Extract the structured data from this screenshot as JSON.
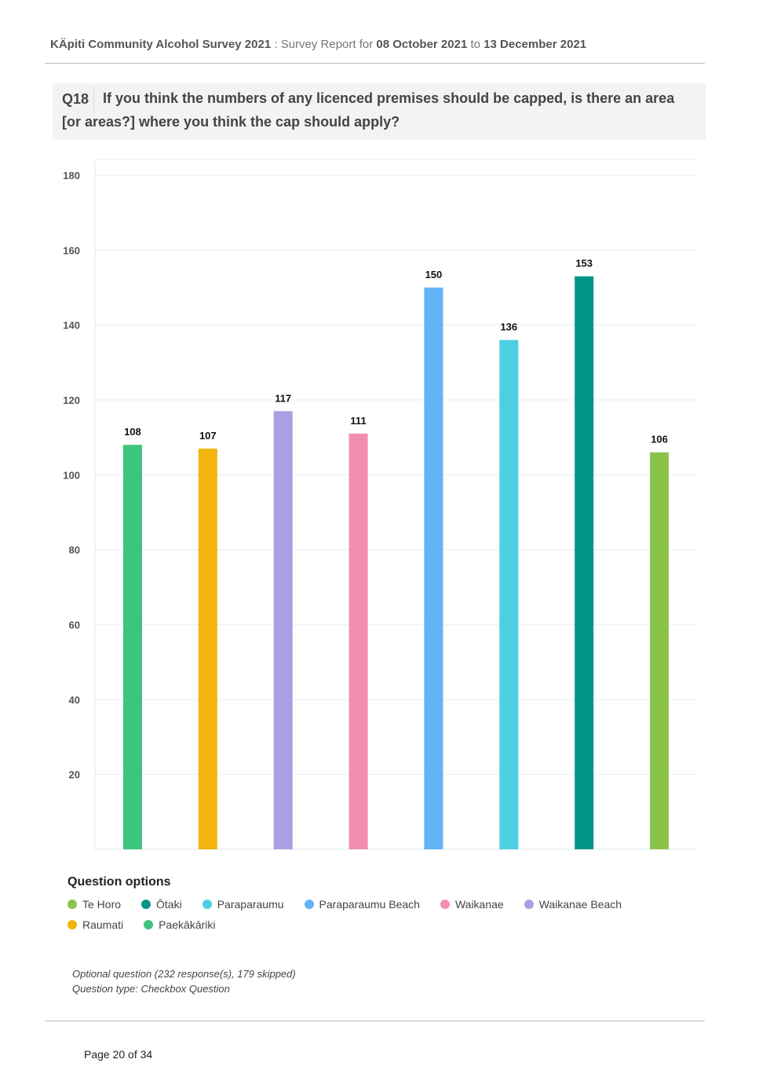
{
  "header": {
    "survey": "KÄpiti Community Alcohol Survey 2021",
    "separator": " : ",
    "report_prefix": "Survey Report for ",
    "start_date": "08 October 2021",
    "to_word": " to ",
    "end_date": "13 December 2021"
  },
  "question": {
    "number": "Q18",
    "text": "If you think the numbers of any licenced premises should be capped, is there an area [or areas?] where you think the cap should apply?"
  },
  "chart_data": {
    "type": "bar",
    "categories": [
      "Paekākāriki",
      "Raumati",
      "Waikanae Beach",
      "Waikanae",
      "Paraparaumu Beach",
      "Paraparaumu",
      "Ōtaki",
      "Te Horo"
    ],
    "values": [
      108,
      107,
      117,
      111,
      150,
      136,
      153,
      106
    ],
    "colors": [
      "#3dc47e",
      "#f2b50f",
      "#ab9fe3",
      "#f28fae",
      "#62b4f7",
      "#4dd0e1",
      "#009688",
      "#8bc34a"
    ],
    "ylim": [
      0,
      180
    ],
    "yticks": [
      20,
      40,
      60,
      80,
      100,
      120,
      140,
      160,
      180
    ],
    "grid": true,
    "legend_placement": "bottom"
  },
  "legend": {
    "title": "Question options",
    "items": [
      {
        "label": "Te Horo",
        "color": "#8bc34a"
      },
      {
        "label": "Ōtaki",
        "color": "#009688"
      },
      {
        "label": "Paraparaumu",
        "color": "#4dd0e1"
      },
      {
        "label": "Paraparaumu Beach",
        "color": "#62b4f7"
      },
      {
        "label": "Waikanae",
        "color": "#f28fae"
      },
      {
        "label": "Waikanae Beach",
        "color": "#ab9fe3"
      },
      {
        "label": "Raumati",
        "color": "#f2b50f"
      },
      {
        "label": "Paekākāriki",
        "color": "#3dc47e"
      }
    ]
  },
  "notes": {
    "line1": "Optional question (232 response(s), 179 skipped)",
    "line2": "Question type: Checkbox Question"
  },
  "footer": {
    "page": "Page 20 of 34"
  }
}
